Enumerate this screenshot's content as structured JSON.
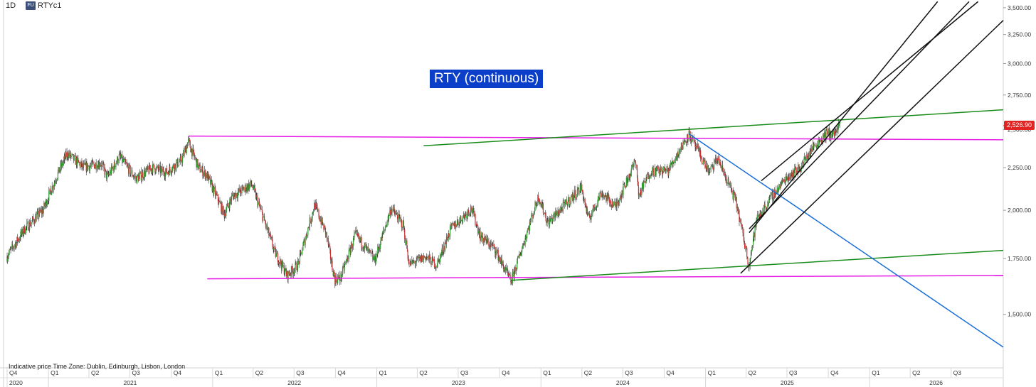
{
  "header": {
    "interval": "1D",
    "badge": "FU",
    "symbol": "RTYc1"
  },
  "note": "Indicative price    Time Zone: Dublin, Edinburgh, Lisbon, London",
  "last_price_label": "2,526.90",
  "colors": {
    "magenta": "#e61ee6",
    "green": "#1a8c1a",
    "blue": "#1a6fd6",
    "black": "#111111",
    "candle_up": "#2a9d2a",
    "candle_down": "#d03030",
    "title_bg": "#0b3fc9",
    "price_tag": "#e02424"
  },
  "chart_data": {
    "type": "line",
    "title": "RTY (continuous)",
    "y_axis": {
      "side": "right",
      "scale": "log",
      "range": [
        1330,
        3520
      ],
      "ticks": [
        1500,
        1750,
        2000,
        2250,
        2500,
        2750,
        3000,
        3250,
        3500
      ],
      "tick_labels": [
        "1,500.00",
        "1,750.00",
        "2,000.00",
        "2,250.00",
        "2,500.00",
        "2,750.00",
        "3,000.00",
        "3,250.00",
        "3,500.00"
      ]
    },
    "x_axis": {
      "range": [
        "2020-10-01",
        "2026-10-25"
      ],
      "quarters": [
        {
          "label": "Q4",
          "date": "2020-10-01"
        },
        {
          "label": "Q1",
          "date": "2021-01-01"
        },
        {
          "label": "Q2",
          "date": "2021-04-01"
        },
        {
          "label": "Q3",
          "date": "2021-07-01"
        },
        {
          "label": "Q4",
          "date": "2021-10-01"
        },
        {
          "label": "Q1",
          "date": "2022-01-01"
        },
        {
          "label": "Q2",
          "date": "2022-04-01"
        },
        {
          "label": "Q3",
          "date": "2022-07-01"
        },
        {
          "label": "Q4",
          "date": "2022-10-01"
        },
        {
          "label": "Q1",
          "date": "2023-01-01"
        },
        {
          "label": "Q2",
          "date": "2023-04-01"
        },
        {
          "label": "Q3",
          "date": "2023-07-01"
        },
        {
          "label": "Q4",
          "date": "2023-10-01"
        },
        {
          "label": "Q1",
          "date": "2024-01-01"
        },
        {
          "label": "Q2",
          "date": "2024-04-01"
        },
        {
          "label": "Q3",
          "date": "2024-07-01"
        },
        {
          "label": "Q4",
          "date": "2024-10-01"
        },
        {
          "label": "Q1",
          "date": "2025-01-01"
        },
        {
          "label": "Q2",
          "date": "2025-04-01"
        },
        {
          "label": "Q3",
          "date": "2025-07-01"
        },
        {
          "label": "Q4",
          "date": "2025-10-01"
        },
        {
          "label": "Q1",
          "date": "2026-01-01"
        },
        {
          "label": "Q2",
          "date": "2026-04-01"
        },
        {
          "label": "Q3",
          "date": "2026-07-01"
        }
      ],
      "years": [
        {
          "label": "2020",
          "date": "2020-10-01"
        },
        {
          "label": "2021",
          "date": "2021-01-01"
        },
        {
          "label": "2022",
          "date": "2022-01-01"
        },
        {
          "label": "2023",
          "date": "2023-01-01"
        },
        {
          "label": "2024",
          "date": "2024-01-01"
        },
        {
          "label": "2025",
          "date": "2025-01-01"
        },
        {
          "label": "2026",
          "date": "2026-01-01"
        }
      ]
    },
    "last_price": 2526.9,
    "price_path": [
      [
        "2020-10-01",
        1760
      ],
      [
        "2020-11-10",
        1900
      ],
      [
        "2020-12-20",
        2000
      ],
      [
        "2021-01-20",
        2200
      ],
      [
        "2021-02-12",
        2340
      ],
      [
        "2021-03-20",
        2250
      ],
      [
        "2021-04-28",
        2280
      ],
      [
        "2021-05-12",
        2190
      ],
      [
        "2021-06-08",
        2320
      ],
      [
        "2021-07-15",
        2180
      ],
      [
        "2021-08-20",
        2250
      ],
      [
        "2021-09-20",
        2220
      ],
      [
        "2021-10-25",
        2300
      ],
      [
        "2021-11-08",
        2420
      ],
      [
        "2021-12-01",
        2250
      ],
      [
        "2021-12-20",
        2200
      ],
      [
        "2022-01-27",
        1980
      ],
      [
        "2022-02-15",
        2080
      ],
      [
        "2022-03-29",
        2150
      ],
      [
        "2022-04-25",
        1950
      ],
      [
        "2022-05-20",
        1780
      ],
      [
        "2022-06-16",
        1670
      ],
      [
        "2022-07-10",
        1720
      ],
      [
        "2022-08-16",
        2030
      ],
      [
        "2022-09-10",
        1880
      ],
      [
        "2022-09-30",
        1650
      ],
      [
        "2022-10-13",
        1660
      ],
      [
        "2022-11-15",
        1870
      ],
      [
        "2022-12-28",
        1740
      ],
      [
        "2023-02-02",
        2010
      ],
      [
        "2023-03-01",
        1920
      ],
      [
        "2023-03-15",
        1720
      ],
      [
        "2023-04-20",
        1760
      ],
      [
        "2023-05-15",
        1720
      ],
      [
        "2023-06-15",
        1900
      ],
      [
        "2023-07-31",
        2010
      ],
      [
        "2023-08-20",
        1860
      ],
      [
        "2023-09-20",
        1800
      ],
      [
        "2023-10-27",
        1640
      ],
      [
        "2023-11-20",
        1800
      ],
      [
        "2023-12-27",
        2080
      ],
      [
        "2024-01-17",
        1930
      ],
      [
        "2024-03-31",
        2130
      ],
      [
        "2024-04-16",
        1950
      ],
      [
        "2024-05-15",
        2100
      ],
      [
        "2024-06-15",
        2020
      ],
      [
        "2024-07-31",
        2300
      ],
      [
        "2024-08-05",
        2080
      ],
      [
        "2024-09-01",
        2230
      ],
      [
        "2024-10-10",
        2230
      ],
      [
        "2024-11-25",
        2470
      ],
      [
        "2025-01-10",
        2220
      ],
      [
        "2025-01-28",
        2310
      ],
      [
        "2025-03-10",
        2050
      ],
      [
        "2025-04-08",
        1720
      ],
      [
        "2025-04-25",
        1950
      ],
      [
        "2025-05-30",
        2080
      ],
      [
        "2025-06-30",
        2190
      ],
      [
        "2025-07-31",
        2250
      ],
      [
        "2025-08-28",
        2380
      ],
      [
        "2025-09-30",
        2480
      ],
      [
        "2025-10-10",
        2460
      ],
      [
        "2025-10-28",
        2526.9
      ]
    ],
    "trendlines": [
      {
        "color": "magenta",
        "points": [
          [
            "2021-11-08",
            2455
          ],
          [
            "2026-10-25",
            2430
          ]
        ]
      },
      {
        "color": "magenta",
        "points": [
          [
            "2021-12-20",
            1655
          ],
          [
            "2026-10-25",
            1670
          ]
        ]
      },
      {
        "color": "green",
        "points": [
          [
            "2023-10-27",
            1648
          ],
          [
            "2026-10-25",
            1790
          ]
        ]
      },
      {
        "color": "green",
        "points": [
          [
            "2023-04-15",
            2390
          ],
          [
            "2026-10-25",
            2640
          ]
        ]
      },
      {
        "color": "blue",
        "points": [
          [
            "2024-11-25",
            2470
          ],
          [
            "2026-10-25",
            1370
          ]
        ]
      },
      {
        "color": "black",
        "points": [
          [
            "2025-04-08",
            1880
          ],
          [
            "2026-06-01",
            3560
          ]
        ]
      },
      {
        "color": "black",
        "points": [
          [
            "2025-04-08",
            1900
          ],
          [
            "2026-08-10",
            3560
          ]
        ]
      },
      {
        "color": "black",
        "points": [
          [
            "2025-05-05",
            2170
          ],
          [
            "2026-08-30",
            3560
          ]
        ]
      },
      {
        "color": "black",
        "points": [
          [
            "2025-03-20",
            1680
          ],
          [
            "2026-10-25",
            3380
          ]
        ]
      }
    ]
  }
}
